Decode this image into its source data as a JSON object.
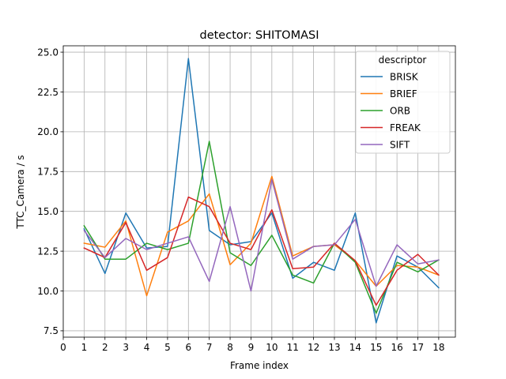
{
  "chart_data": {
    "type": "line",
    "title": "detector: SHITOMASI",
    "xlabel": "Frame index",
    "ylabel": "TTC_Camera / s",
    "xlim": [
      0,
      18.8
    ],
    "ylim": [
      7.1,
      25.4
    ],
    "xticks": [
      0,
      1,
      2,
      3,
      4,
      5,
      6,
      7,
      8,
      9,
      10,
      11,
      12,
      13,
      14,
      15,
      16,
      17,
      18
    ],
    "yticks": [
      7.5,
      10.0,
      12.5,
      15.0,
      17.5,
      20.0,
      22.5,
      25.0
    ],
    "ytick_labels": [
      "7.5",
      "10.0",
      "12.5",
      "15.0",
      "17.5",
      "20.0",
      "22.5",
      "25.0"
    ],
    "grid": true,
    "legend": {
      "title": "descriptor",
      "placement": "top-right"
    },
    "x": [
      1,
      2,
      3,
      4,
      5,
      6,
      7,
      8,
      9,
      10,
      11,
      12,
      13,
      14,
      15,
      16,
      17,
      18
    ],
    "series": [
      {
        "name": "BRISK",
        "color": "#1f77b4",
        "values": [
          13.9,
          11.1,
          14.9,
          12.7,
          12.8,
          24.6,
          13.8,
          12.9,
          13.1,
          14.9,
          10.8,
          11.8,
          11.3,
          14.9,
          8.0,
          12.2,
          11.5,
          10.2
        ]
      },
      {
        "name": "BRIEF",
        "color": "#ff7f0e",
        "values": [
          13.0,
          12.75,
          14.4,
          9.7,
          13.7,
          14.4,
          16.1,
          11.65,
          13.0,
          17.2,
          12.2,
          12.8,
          12.9,
          11.9,
          10.3,
          11.6,
          11.5,
          11.0
        ]
      },
      {
        "name": "ORB",
        "color": "#2ca02c",
        "values": [
          14.1,
          12.0,
          12.0,
          13.0,
          12.6,
          13.0,
          19.4,
          12.4,
          11.6,
          13.5,
          11.0,
          10.5,
          13.0,
          11.8,
          8.6,
          11.8,
          11.2,
          11.95
        ]
      },
      {
        "name": "FREAK",
        "color": "#d62728",
        "values": [
          12.7,
          12.1,
          14.3,
          11.3,
          12.1,
          15.9,
          15.3,
          13.0,
          12.6,
          15.1,
          11.4,
          11.5,
          13.0,
          11.9,
          9.1,
          11.3,
          12.3,
          11.0
        ]
      },
      {
        "name": "SIFT",
        "color": "#9467bd",
        "values": [
          13.8,
          12.1,
          13.3,
          12.6,
          13.0,
          13.4,
          10.6,
          15.3,
          10.0,
          17.0,
          12.0,
          12.8,
          12.9,
          14.5,
          10.3,
          12.9,
          11.7,
          11.95
        ]
      }
    ]
  }
}
